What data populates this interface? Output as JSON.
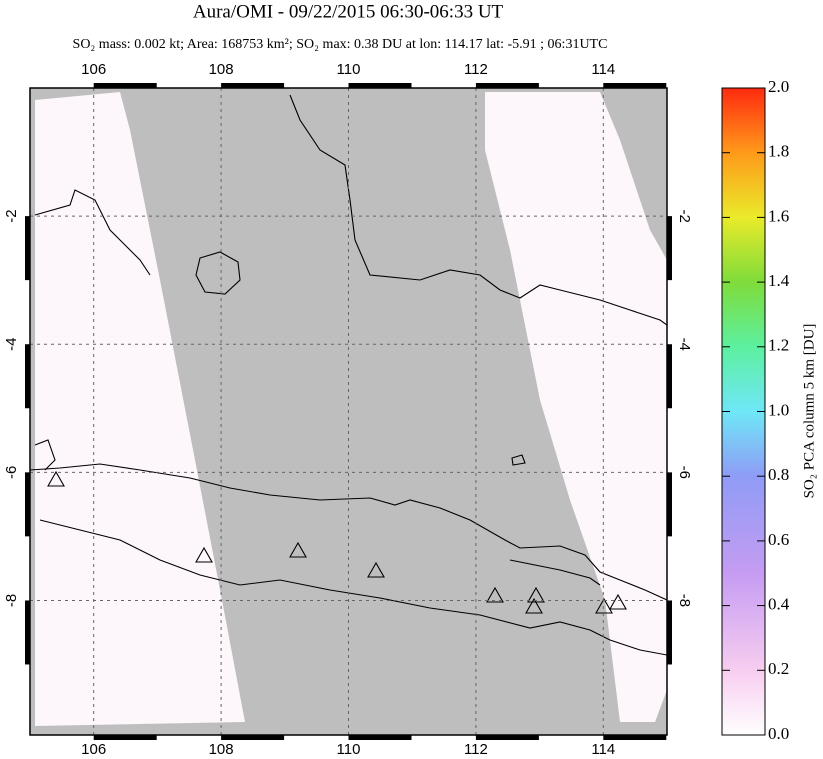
{
  "map": {
    "title": "Aura/OMI - 09/22/2015 06:30-06:33 UT",
    "subtitle": "SO₂ mass: 0.002 kt; Area: 168753 km²; SO₂ max: 0.38 DU at lon: 114.17 lat: -5.91 ; 06:31UTC",
    "xlim": [
      105,
      115
    ],
    "ylim": [
      -10.1,
      0
    ],
    "xticks": [
      106,
      108,
      110,
      112,
      114
    ],
    "yticks": [
      -2,
      -4,
      -6,
      -8
    ],
    "colorbar": {
      "label": "SO₂ PCA column 5 km [DU]",
      "lim": [
        0,
        2
      ],
      "ticks": [
        {
          "value": 0,
          "label": "0.0"
        },
        {
          "value": 0.2,
          "label": "0.2"
        },
        {
          "value": 0.4,
          "label": "0.4"
        },
        {
          "value": 0.6,
          "label": "0.6"
        },
        {
          "value": 0.8,
          "label": "0.8"
        },
        {
          "value": 1,
          "label": "1.0"
        },
        {
          "value": 1.2,
          "label": "1.2"
        },
        {
          "value": 1.4,
          "label": "1.4"
        },
        {
          "value": 1.6,
          "label": "1.6"
        },
        {
          "value": 1.8,
          "label": "1.8"
        },
        {
          "value": 2,
          "label": "2.0"
        }
      ]
    }
  }
}
